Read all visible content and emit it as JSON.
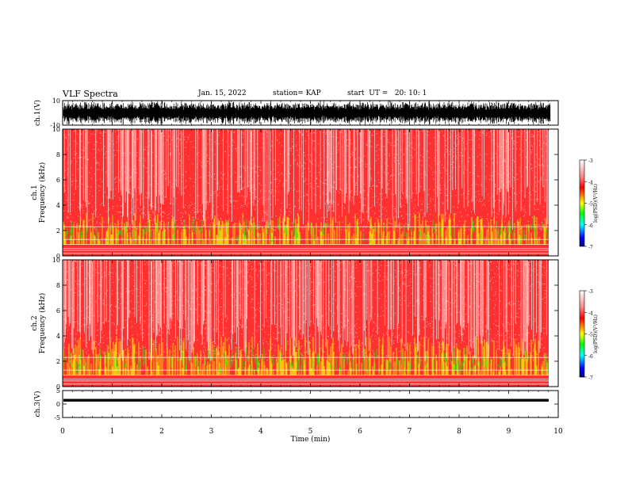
{
  "header": {
    "title": "VLF Spectra",
    "date": "Jan. 15, 2022",
    "station": "station= KAP",
    "start": "start  UT =   20: 10: 1"
  },
  "chart_data": [
    {
      "type": "line",
      "name": "ch1-waveform",
      "ylabel": "ch.1(V)",
      "ylim": [
        -10,
        10
      ],
      "yticks": [
        "10",
        "-10"
      ],
      "x": [
        0,
        10
      ],
      "description_free": true
    },
    {
      "type": "heatmap",
      "name": "ch1-spectrogram",
      "ylabel": "ch.1\nFrequency (kHz)",
      "ylabel_lines": [
        "ch.1",
        "Frequency (kHz)"
      ],
      "ylim": [
        0,
        10
      ],
      "yticks": [
        "0",
        "2",
        "4",
        "6",
        "8",
        "10"
      ],
      "xlim": [
        0,
        10
      ],
      "colorbar": {
        "label": "log(PSD)(V²/Hz)",
        "range": [
          -7,
          -3
        ],
        "ticks": [
          "-3",
          "-4",
          "-5",
          "-6",
          "-7"
        ]
      }
    },
    {
      "type": "heatmap",
      "name": "ch2-spectrogram",
      "ylabel_lines": [
        "ch.2",
        "Frequency (kHz)"
      ],
      "ylim": [
        0,
        10
      ],
      "yticks": [
        "0",
        "2",
        "4",
        "6",
        "8",
        "10"
      ],
      "xlim": [
        0,
        10
      ],
      "colorbar": {
        "label": "log(PSD)(V²/Hz)",
        "range": [
          -7,
          -3
        ],
        "ticks": [
          "-3",
          "-4",
          "-5",
          "-6",
          "-7"
        ]
      }
    },
    {
      "type": "line",
      "name": "ch3-waveform",
      "ylabel": "ch.3(V)",
      "ylim": [
        -5,
        5
      ],
      "yticks": [
        "5",
        "0",
        "-5"
      ],
      "xlim": [
        0,
        10
      ]
    }
  ],
  "xaxis": {
    "label": "Time (min)",
    "ticks": [
      "0",
      "1",
      "2",
      "3",
      "4",
      "5",
      "6",
      "7",
      "8",
      "9",
      "10"
    ]
  },
  "colors": {
    "spectrogram_high": "#ff0000",
    "spectrogram_low": "#ffffff",
    "band_mid": "#ffff00",
    "band_low": "#00ff00",
    "waveform": "#000000"
  }
}
